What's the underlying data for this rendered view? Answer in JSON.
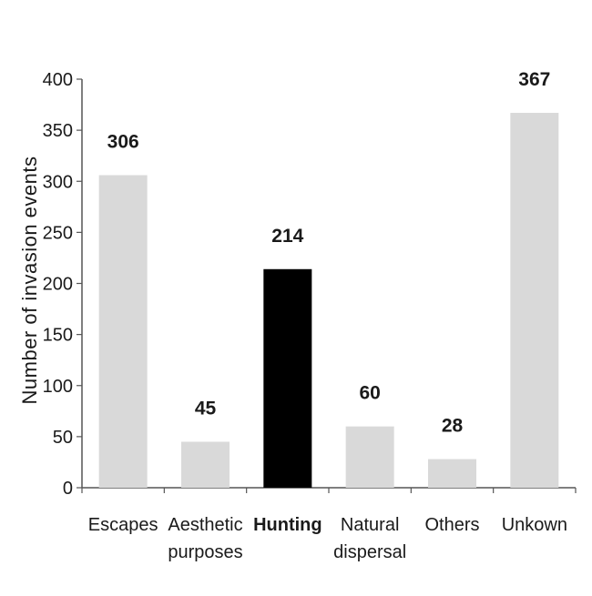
{
  "chart_data": {
    "type": "bar",
    "title": "",
    "xlabel": "",
    "ylabel": "Number of invasion events",
    "categories": [
      [
        "Escapes"
      ],
      [
        "Aesthetic",
        "purposes"
      ],
      [
        "Hunting"
      ],
      [
        "Natural",
        "dispersal"
      ],
      [
        "Others"
      ],
      [
        "Unkown"
      ]
    ],
    "values": [
      306,
      45,
      214,
      60,
      28,
      367
    ],
    "value_labels": [
      "306",
      "45",
      "214",
      "60",
      "28",
      "367"
    ],
    "ylim": [
      0,
      400
    ],
    "yticks": [
      0,
      50,
      100,
      150,
      200,
      250,
      300,
      350,
      400
    ],
    "highlight_index": 2,
    "grid": false,
    "legend": "none",
    "colors": {
      "bar": "#d9d9d9",
      "highlight": "#000000",
      "axis": "#555555"
    }
  }
}
